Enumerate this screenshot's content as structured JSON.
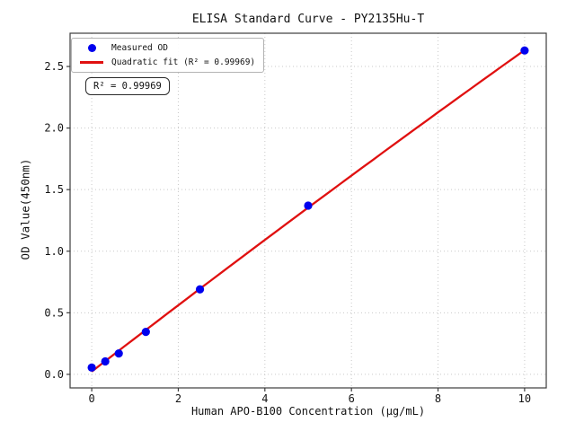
{
  "chart_data": {
    "type": "scatter",
    "title": "ELISA Standard Curve - PY2135Hu-T",
    "xlabel": "Human APO-B100 Concentration (μg/mL)",
    "ylabel": "OD Value(450nm)",
    "series": [
      {
        "name": "Measured OD",
        "x": [
          0,
          0.3125,
          0.625,
          1.25,
          2.5,
          5,
          10
        ],
        "y": [
          0.055,
          0.105,
          0.17,
          0.345,
          0.69,
          1.37,
          2.63
        ]
      }
    ],
    "fit": {
      "name": "Quadratic fit",
      "type": "quadratic",
      "coefficients": [
        0.0228,
        0.2714,
        -0.00104
      ],
      "r_squared": 0.99969,
      "x_range": [
        0,
        10
      ]
    },
    "xlim": [
      -0.5,
      10.5
    ],
    "ylim": [
      -0.11,
      2.77
    ],
    "xticks": [
      0,
      2,
      4,
      6,
      8,
      10
    ],
    "xtick_labels": [
      "0",
      "2",
      "4",
      "6",
      "8",
      "10"
    ],
    "yticks": [
      0.0,
      0.5,
      1.0,
      1.5,
      2.0,
      2.5
    ],
    "ytick_labels": [
      "0.0",
      "0.5",
      "1.0",
      "1.5",
      "2.0",
      "2.5"
    ],
    "grid": true,
    "grid_style": "dotted",
    "legend": {
      "position": "upper left",
      "entries": [
        {
          "label": "Measured OD",
          "marker": "circle",
          "color": "#0000ee"
        },
        {
          "label": "Quadratic fit (R² = 0.99969)",
          "marker": "line",
          "color": "#e01010"
        }
      ]
    },
    "annotation": {
      "text": "R² = 0.99969"
    },
    "colors": {
      "points": "#0000ee",
      "fit_line": "#e01010",
      "grid": "#c9c9c9",
      "spine": "#3c3c3c",
      "text": "#141414",
      "background": "#ffffff"
    }
  }
}
